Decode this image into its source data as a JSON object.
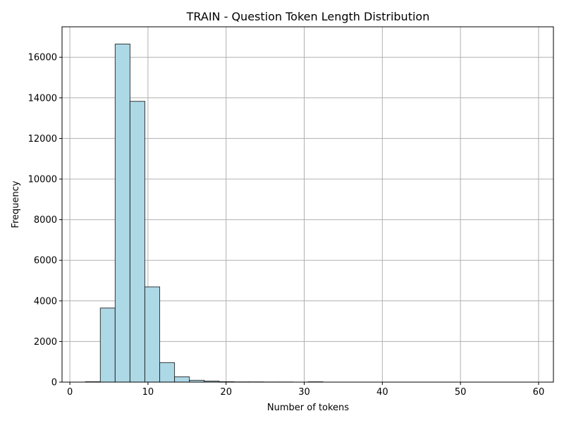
{
  "chart_data": {
    "type": "bar",
    "title": "TRAIN - Question Token Length Distribution",
    "xlabel": "Number of tokens",
    "ylabel": "Frequency",
    "xlim": [
      -1,
      61.9
    ],
    "ylim": [
      0,
      17500
    ],
    "xticks": [
      0,
      10,
      20,
      30,
      40,
      50,
      60
    ],
    "yticks": [
      0,
      2000,
      4000,
      6000,
      8000,
      10000,
      12000,
      14000,
      16000
    ],
    "grid": true,
    "bin_edges": [
      2,
      3.9,
      5.8,
      7.7,
      9.6,
      11.5,
      13.4,
      15.3,
      17.2,
      19.1,
      21.0,
      22.9,
      24.8,
      26.7,
      28.6,
      30.5,
      32.4,
      34.3,
      36.2,
      38.1,
      40.0,
      41.9,
      43.8,
      45.7,
      47.6,
      49.5,
      51.4,
      53.3,
      55.2,
      57.1,
      59.0
    ],
    "values": [
      20,
      3650,
      16650,
      13830,
      4690,
      960,
      260,
      90,
      50,
      20,
      10,
      10,
      5,
      5,
      0,
      15,
      0,
      0,
      0,
      0,
      0,
      0,
      0,
      0,
      0,
      0,
      0,
      0,
      0,
      0
    ],
    "bar_color": "#add8e6",
    "edge_color": "#1a1a1a",
    "grid_color": "#b0b0b0"
  }
}
